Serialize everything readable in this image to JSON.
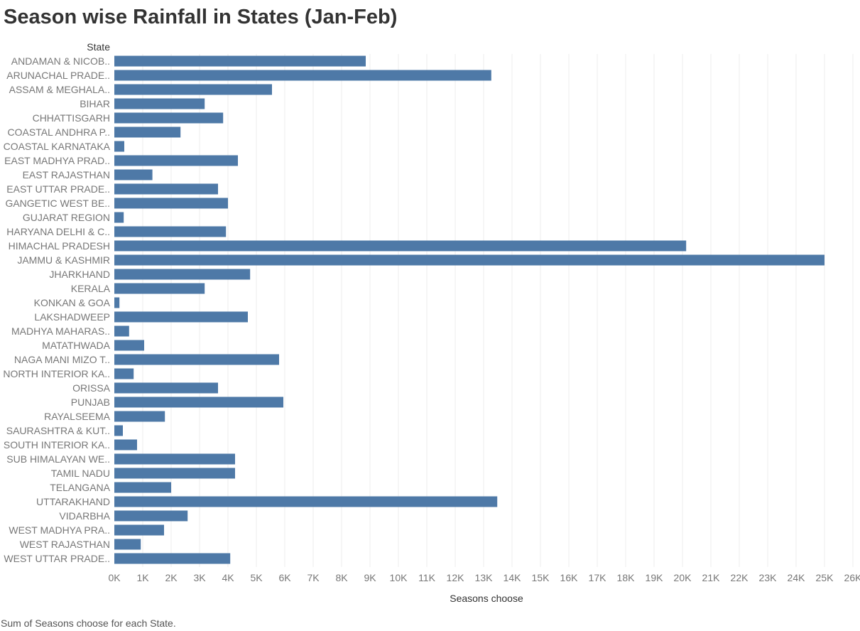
{
  "title": "Season wise Rainfall in States (Jan-Feb)",
  "caption": "Sum of Seasons choose for each State.",
  "colors": {
    "bar": "#4e79a7",
    "gridline": "#ececec",
    "axis_text": "#777777",
    "label_text": "#333333"
  },
  "chart_data": {
    "type": "bar",
    "orientation": "horizontal",
    "row_header": "State",
    "xlabel": "Seasons choose",
    "xlim": [
      0,
      26300
    ],
    "x_ticks": [
      0,
      1000,
      2000,
      3000,
      4000,
      5000,
      6000,
      7000,
      8000,
      9000,
      10000,
      11000,
      12000,
      13000,
      14000,
      15000,
      16000,
      17000,
      18000,
      19000,
      20000,
      21000,
      22000,
      23000,
      24000,
      25000,
      26000
    ],
    "x_tick_labels": [
      "0K",
      "1K",
      "2K",
      "3K",
      "4K",
      "5K",
      "6K",
      "7K",
      "8K",
      "9K",
      "10K",
      "11K",
      "12K",
      "13K",
      "14K",
      "15K",
      "16K",
      "17K",
      "18K",
      "19K",
      "20K",
      "21K",
      "22K",
      "23K",
      "24K",
      "25K",
      "26K"
    ],
    "grid": true,
    "categories": [
      "ANDAMAN & NICOB..",
      "ARUNACHAL PRADE..",
      "ASSAM & MEGHALA..",
      "BIHAR",
      "CHHATTISGARH",
      "COASTAL ANDHRA P..",
      "COASTAL KARNATAKA",
      "EAST MADHYA PRAD..",
      "EAST RAJASTHAN",
      "EAST UTTAR PRADE..",
      "GANGETIC WEST BE..",
      "GUJARAT REGION",
      "HARYANA DELHI & C..",
      "HIMACHAL PRADESH",
      "JAMMU & KASHMIR",
      "JHARKHAND",
      "KERALA",
      "KONKAN & GOA",
      "LAKSHADWEEP",
      "MADHYA MAHARAS..",
      "MATATHWADA",
      "NAGA MANI MIZO T..",
      "NORTH INTERIOR KA..",
      "ORISSA",
      "PUNJAB",
      "RAYALSEEMA",
      "SAURASHTRA & KUT..",
      "SOUTH INTERIOR KA..",
      "SUB HIMALAYAN WE..",
      "TAMIL NADU",
      "TELANGANA",
      "UTTARAKHAND",
      "VIDARBHA",
      "WEST MADHYA PRA..",
      "WEST RAJASTHAN",
      "WEST UTTAR PRADE.."
    ],
    "values": [
      8850,
      13270,
      5550,
      3180,
      3830,
      2330,
      350,
      4350,
      1340,
      3650,
      4000,
      330,
      3930,
      20130,
      25000,
      4780,
      3180,
      180,
      4700,
      520,
      1050,
      5800,
      680,
      3650,
      5950,
      1780,
      300,
      800,
      4250,
      4250,
      2000,
      13480,
      2580,
      1750,
      930,
      4080
    ]
  }
}
